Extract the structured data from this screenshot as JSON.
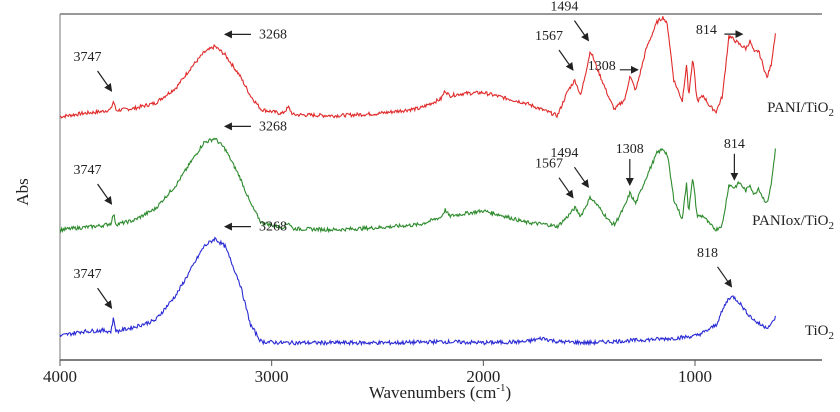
{
  "chart_data": {
    "type": "line",
    "title": "",
    "xlabel": "Wavenumbers (cm",
    "xlabel_sup": "-1",
    "xlabel_close": ")",
    "ylabel": "Abs",
    "xlim": [
      4000,
      400
    ],
    "x_reversed": true,
    "xticks": [
      {
        "value": 4000,
        "label": "4000"
      },
      {
        "value": 3000,
        "label": "3000"
      },
      {
        "value": 2000,
        "label": "2000"
      },
      {
        "value": 1000,
        "label": "1000"
      }
    ],
    "grid": false,
    "colors": {
      "pani": "#e02b2b",
      "paniox": "#2e8b2e",
      "tio2": "#2b2bd4",
      "axis": "#555555"
    },
    "series": [
      {
        "name": "PANI/TiO",
        "name_sub": "2",
        "color": "#e02b2b",
        "points": [
          [
            4000,
            0.05
          ],
          [
            3900,
            0.08
          ],
          [
            3800,
            0.1
          ],
          [
            3760,
            0.12
          ],
          [
            3747,
            0.2
          ],
          [
            3735,
            0.11
          ],
          [
            3650,
            0.13
          ],
          [
            3550,
            0.18
          ],
          [
            3450,
            0.33
          ],
          [
            3380,
            0.52
          ],
          [
            3320,
            0.66
          ],
          [
            3268,
            0.72
          ],
          [
            3220,
            0.64
          ],
          [
            3150,
            0.44
          ],
          [
            3100,
            0.25
          ],
          [
            3050,
            0.12
          ],
          [
            2950,
            0.08
          ],
          [
            2920,
            0.14
          ],
          [
            2900,
            0.07
          ],
          [
            2700,
            0.06
          ],
          [
            2500,
            0.08
          ],
          [
            2300,
            0.13
          ],
          [
            2200,
            0.22
          ],
          [
            2180,
            0.3
          ],
          [
            2160,
            0.25
          ],
          [
            2100,
            0.27
          ],
          [
            2000,
            0.28
          ],
          [
            1900,
            0.23
          ],
          [
            1800,
            0.18
          ],
          [
            1700,
            0.1
          ],
          [
            1650,
            0.06
          ],
          [
            1600,
            0.3
          ],
          [
            1567,
            0.4
          ],
          [
            1540,
            0.25
          ],
          [
            1494,
            0.68
          ],
          [
            1460,
            0.5
          ],
          [
            1400,
            0.2
          ],
          [
            1380,
            0.12
          ],
          [
            1330,
            0.22
          ],
          [
            1308,
            0.44
          ],
          [
            1280,
            0.3
          ],
          [
            1230,
            0.7
          ],
          [
            1180,
            0.95
          ],
          [
            1150,
            1.0
          ],
          [
            1130,
            0.92
          ],
          [
            1100,
            0.4
          ],
          [
            1060,
            0.2
          ],
          [
            1040,
            0.55
          ],
          [
            1030,
            0.25
          ],
          [
            1010,
            0.6
          ],
          [
            990,
            0.2
          ],
          [
            960,
            0.25
          ],
          [
            930,
            0.15
          ],
          [
            900,
            0.1
          ],
          [
            870,
            0.25
          ],
          [
            840,
            0.82
          ],
          [
            814,
            0.78
          ],
          [
            790,
            0.74
          ],
          [
            760,
            0.7
          ],
          [
            740,
            0.77
          ],
          [
            720,
            0.66
          ],
          [
            700,
            0.68
          ],
          [
            680,
            0.55
          ],
          [
            660,
            0.42
          ],
          [
            640,
            0.55
          ],
          [
            620,
            0.85
          ]
        ]
      },
      {
        "name": "PANIox/TiO",
        "name_sub": "2",
        "color": "#2e8b2e",
        "points": [
          [
            4000,
            0.05
          ],
          [
            3900,
            0.07
          ],
          [
            3800,
            0.09
          ],
          [
            3760,
            0.11
          ],
          [
            3747,
            0.2
          ],
          [
            3735,
            0.1
          ],
          [
            3650,
            0.14
          ],
          [
            3550,
            0.25
          ],
          [
            3450,
            0.48
          ],
          [
            3380,
            0.7
          ],
          [
            3320,
            0.88
          ],
          [
            3268,
            0.92
          ],
          [
            3220,
            0.82
          ],
          [
            3150,
            0.55
          ],
          [
            3100,
            0.3
          ],
          [
            3050,
            0.12
          ],
          [
            2950,
            0.07
          ],
          [
            2920,
            0.12
          ],
          [
            2900,
            0.06
          ],
          [
            2700,
            0.05
          ],
          [
            2500,
            0.07
          ],
          [
            2300,
            0.1
          ],
          [
            2200,
            0.17
          ],
          [
            2180,
            0.24
          ],
          [
            2160,
            0.18
          ],
          [
            2100,
            0.2
          ],
          [
            2000,
            0.23
          ],
          [
            1900,
            0.18
          ],
          [
            1800,
            0.12
          ],
          [
            1700,
            0.1
          ],
          [
            1650,
            0.08
          ],
          [
            1600,
            0.18
          ],
          [
            1567,
            0.26
          ],
          [
            1540,
            0.18
          ],
          [
            1494,
            0.36
          ],
          [
            1460,
            0.28
          ],
          [
            1400,
            0.12
          ],
          [
            1380,
            0.1
          ],
          [
            1330,
            0.28
          ],
          [
            1308,
            0.4
          ],
          [
            1280,
            0.3
          ],
          [
            1230,
            0.55
          ],
          [
            1180,
            0.78
          ],
          [
            1150,
            0.82
          ],
          [
            1130,
            0.76
          ],
          [
            1100,
            0.34
          ],
          [
            1060,
            0.15
          ],
          [
            1040,
            0.5
          ],
          [
            1030,
            0.22
          ],
          [
            1010,
            0.55
          ],
          [
            990,
            0.18
          ],
          [
            960,
            0.18
          ],
          [
            930,
            0.1
          ],
          [
            900,
            0.05
          ],
          [
            870,
            0.1
          ],
          [
            840,
            0.48
          ],
          [
            814,
            0.45
          ],
          [
            790,
            0.5
          ],
          [
            760,
            0.42
          ],
          [
            740,
            0.48
          ],
          [
            720,
            0.38
          ],
          [
            700,
            0.45
          ],
          [
            680,
            0.36
          ],
          [
            660,
            0.3
          ],
          [
            640,
            0.48
          ],
          [
            620,
            0.82
          ]
        ]
      },
      {
        "name": "TiO",
        "name_sub": "2",
        "color": "#2b2bd4",
        "points": [
          [
            4000,
            0.08
          ],
          [
            3900,
            0.12
          ],
          [
            3800,
            0.13
          ],
          [
            3760,
            0.12
          ],
          [
            3747,
            0.24
          ],
          [
            3735,
            0.12
          ],
          [
            3650,
            0.16
          ],
          [
            3550,
            0.22
          ],
          [
            3450,
            0.45
          ],
          [
            3380,
            0.68
          ],
          [
            3320,
            0.88
          ],
          [
            3268,
            0.95
          ],
          [
            3220,
            0.88
          ],
          [
            3150,
            0.55
          ],
          [
            3100,
            0.18
          ],
          [
            3050,
            0.03
          ],
          [
            2950,
            0.02
          ],
          [
            2700,
            0.02
          ],
          [
            2400,
            0.02
          ],
          [
            2200,
            0.03
          ],
          [
            2000,
            0.02
          ],
          [
            1800,
            0.03
          ],
          [
            1720,
            0.06
          ],
          [
            1650,
            0.03
          ],
          [
            1500,
            0.02
          ],
          [
            1300,
            0.04
          ],
          [
            1100,
            0.06
          ],
          [
            1000,
            0.08
          ],
          [
            950,
            0.12
          ],
          [
            900,
            0.18
          ],
          [
            860,
            0.35
          ],
          [
            840,
            0.42
          ],
          [
            818,
            0.43
          ],
          [
            790,
            0.38
          ],
          [
            760,
            0.3
          ],
          [
            720,
            0.22
          ],
          [
            690,
            0.18
          ],
          [
            660,
            0.16
          ],
          [
            640,
            0.18
          ],
          [
            620,
            0.25
          ]
        ]
      }
    ],
    "annotations": [
      {
        "series": 0,
        "text": "3747",
        "x": 3747,
        "arrow": "down-right"
      },
      {
        "series": 0,
        "text": "3268",
        "x": 3268,
        "arrow": "left"
      },
      {
        "series": 0,
        "text": "1567",
        "x": 1567,
        "arrow": "down-right"
      },
      {
        "series": 0,
        "text": "1494",
        "x": 1494,
        "arrow": "down-right"
      },
      {
        "series": 0,
        "text": "1308",
        "x": 1308,
        "arrow": "right"
      },
      {
        "series": 0,
        "text": "814",
        "x": 814,
        "arrow": "right"
      },
      {
        "series": 1,
        "text": "3747",
        "x": 3747,
        "arrow": "down-right"
      },
      {
        "series": 1,
        "text": "3268",
        "x": 3268,
        "arrow": "left"
      },
      {
        "series": 1,
        "text": "1567",
        "x": 1567,
        "arrow": "down-right"
      },
      {
        "series": 1,
        "text": "1494",
        "x": 1494,
        "arrow": "down-right"
      },
      {
        "series": 1,
        "text": "1308",
        "x": 1308,
        "arrow": "down"
      },
      {
        "series": 1,
        "text": "814",
        "x": 814,
        "arrow": "down"
      },
      {
        "series": 2,
        "text": "3747",
        "x": 3747,
        "arrow": "down-right"
      },
      {
        "series": 2,
        "text": "3268",
        "x": 3268,
        "arrow": "left"
      },
      {
        "series": 2,
        "text": "818",
        "x": 818,
        "arrow": "down-right"
      }
    ]
  }
}
